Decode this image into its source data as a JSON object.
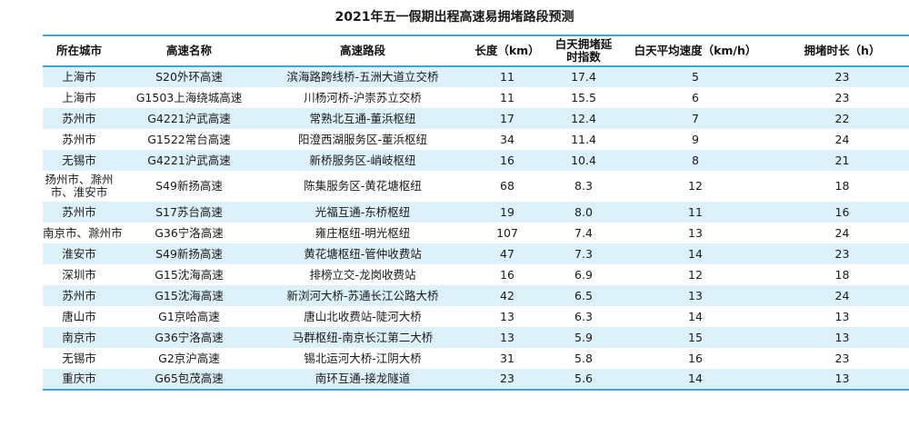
{
  "title": "2021年五一假期出程高速易拥堵路段预测",
  "headers": [
    "所在城市",
    "高速名称",
    "高速路段",
    "长度（km）",
    "白天拥堵延时指数",
    "白天平均速度（km/h）",
    "拥堵时长（h）"
  ],
  "rows": [
    [
      "上海市",
      "S20外环高速",
      "滨海路跨线桥-五洲大道立交桥",
      "11",
      "17.4",
      "5",
      "23"
    ],
    [
      "上海市",
      "G1503上海绕城高速",
      "川杨河桥-沪崇苏立交桥",
      "11",
      "15.5",
      "6",
      "23"
    ],
    [
      "苏州市",
      "G4221沪武高速",
      "常熟北互通-董浜枢纽",
      "17",
      "12.4",
      "7",
      "22"
    ],
    [
      "苏州市",
      "G1522常台高速",
      "阳澄西湖服务区-董浜枢纽",
      "34",
      "11.4",
      "9",
      "24"
    ],
    [
      "无锡市",
      "G4221沪武高速",
      "新桥服务区-峭岐枢纽",
      "16",
      "10.4",
      "8",
      "21"
    ],
    [
      "扬州市、滁州市、淮安市",
      "S49新扬高速",
      "陈集服务区-黄花塘枢纽",
      "68",
      "8.3",
      "12",
      "18"
    ],
    [
      "苏州市",
      "S17苏台高速",
      "光福互通-东桥枢纽",
      "19",
      "8.0",
      "11",
      "16"
    ],
    [
      "南京市、滁州市",
      "G36宁洛高速",
      "雍庄枢纽-明光枢纽",
      "107",
      "7.4",
      "13",
      "24"
    ],
    [
      "淮安市",
      "S49新扬高速",
      "黄花塘枢纽-管仲收费站",
      "47",
      "7.3",
      "14",
      "23"
    ],
    [
      "深圳市",
      "G15沈海高速",
      "排榜立交-龙岗收费站",
      "16",
      "6.9",
      "12",
      "18"
    ],
    [
      "苏州市",
      "G15沈海高速",
      "新浏河大桥-苏通长江公路大桥",
      "42",
      "6.5",
      "13",
      "24"
    ],
    [
      "唐山市",
      "G1京哈高速",
      "唐山北收费站-陡河大桥",
      "13",
      "6.3",
      "14",
      "13"
    ],
    [
      "南京市",
      "G36宁洛高速",
      "马群枢纽-南京长江第二大桥",
      "13",
      "5.9",
      "15",
      "13"
    ],
    [
      "无锡市",
      "G2京沪高速",
      "锡北运河大桥-江阴大桥",
      "31",
      "5.8",
      "16",
      "23"
    ],
    [
      "重庆市",
      "G65包茂高速",
      "南环互通-接龙隧道",
      "23",
      "5.6",
      "14",
      "13"
    ]
  ],
  "colors": {
    "accent_line": "#3aa8d6",
    "stripe": "#ddf1fb"
  }
}
